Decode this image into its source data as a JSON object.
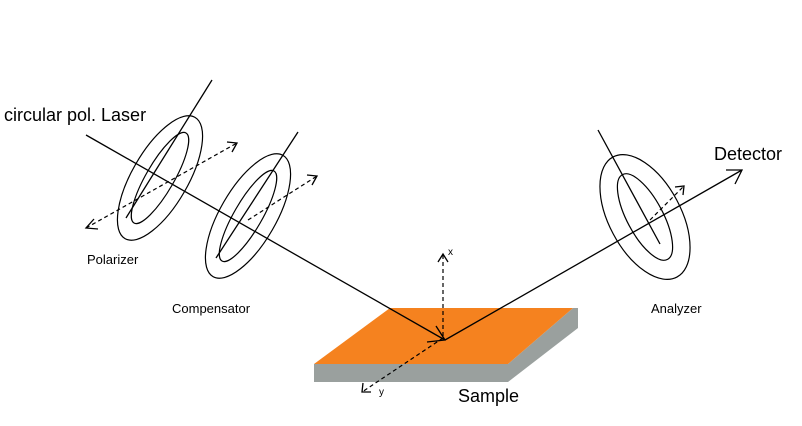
{
  "labels": {
    "laser": "circular pol. Laser",
    "polarizer": "Polarizer",
    "compensator": "Compensator",
    "sample": "Sample",
    "analyzer": "Analyzer",
    "detector": "Detector",
    "axis_x": "x",
    "axis_y": "y"
  },
  "colors": {
    "sample_top": "#f5821f",
    "sample_side": "#9aa09e",
    "lines": "#000000"
  }
}
